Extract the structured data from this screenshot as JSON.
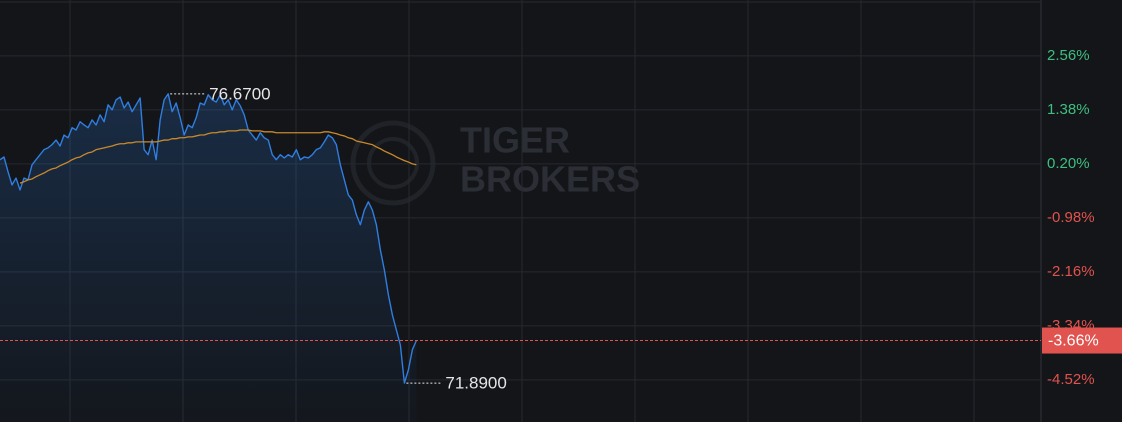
{
  "chart_data": {
    "type": "line",
    "series": [
      {
        "color": "#2f7ee0",
        "values": [
          0.29,
          0.35,
          0.03,
          -0.26,
          -0.11,
          -0.37,
          -0.11,
          -0.15,
          0.18,
          0.29,
          0.4,
          0.51,
          0.55,
          0.62,
          0.72,
          0.59,
          0.83,
          0.77,
          0.99,
          0.94,
          1.12,
          1.05,
          0.99,
          1.16,
          1.05,
          1.27,
          1.12,
          1.49,
          1.38,
          1.6,
          1.66,
          1.42,
          1.55,
          1.34,
          1.49,
          1.64,
          0.51,
          0.4,
          0.72,
          0.29,
          1.16,
          1.6,
          1.73,
          1.34,
          1.53,
          1.21,
          0.83,
          1.05,
          0.99,
          1.21,
          1.53,
          1.49,
          1.71,
          1.6,
          1.55,
          1.71,
          1.49,
          1.6,
          1.38,
          1.6,
          1.47,
          1.27,
          0.94,
          0.83,
          0.72,
          0.88,
          0.77,
          0.72,
          0.4,
          0.29,
          0.4,
          0.33,
          0.4,
          0.35,
          0.51,
          0.29,
          0.35,
          0.33,
          0.4,
          0.51,
          0.55,
          0.68,
          0.83,
          0.77,
          0.62,
          0.18,
          -0.15,
          -0.48,
          -0.59,
          -0.91,
          -1.13,
          -0.81,
          -0.63,
          -0.81,
          -1.13,
          -1.68,
          -2.12,
          -2.66,
          -3.1,
          -3.43,
          -3.76,
          -4.59,
          -4.3,
          -3.86,
          -3.66
        ]
      },
      {
        "color": "#c8892b",
        "values": [
          null,
          null,
          null,
          null,
          null,
          -0.22,
          -0.19,
          -0.15,
          -0.13,
          -0.08,
          -0.04,
          0.0,
          0.05,
          0.09,
          0.11,
          0.16,
          0.2,
          0.24,
          0.29,
          0.33,
          0.35,
          0.4,
          0.44,
          0.46,
          0.51,
          0.53,
          0.55,
          0.57,
          0.59,
          0.62,
          0.64,
          0.64,
          0.66,
          0.66,
          0.68,
          0.68,
          0.68,
          0.68,
          0.68,
          0.68,
          0.7,
          0.72,
          0.72,
          0.75,
          0.75,
          0.77,
          0.77,
          0.79,
          0.79,
          0.81,
          0.83,
          0.83,
          0.86,
          0.88,
          0.88,
          0.9,
          0.9,
          0.92,
          0.92,
          0.92,
          0.94,
          0.94,
          0.94,
          0.92,
          0.92,
          0.92,
          0.9,
          0.9,
          0.9,
          0.88,
          0.88,
          0.88,
          0.88,
          0.88,
          0.88,
          0.88,
          0.88,
          0.88,
          0.88,
          0.88,
          0.88,
          0.9,
          0.9,
          0.88,
          0.86,
          0.83,
          0.81,
          0.77,
          0.75,
          0.7,
          0.68,
          0.66,
          0.64,
          0.62,
          0.57,
          0.53,
          0.48,
          0.44,
          0.4,
          0.35,
          0.31,
          0.27,
          0.24,
          0.2,
          0.18
        ]
      }
    ],
    "xlim": [
      0,
      260
    ],
    "ylim": [
      -5.44,
      3.78
    ],
    "yticks": [
      {
        "value": 2.56,
        "label": "2.56%"
      },
      {
        "value": 1.38,
        "label": "1.38%"
      },
      {
        "value": 0.2,
        "label": "0.20%"
      },
      {
        "value": -0.98,
        "label": "-0.98%"
      },
      {
        "value": -2.16,
        "label": "-2.16%"
      },
      {
        "value": -3.34,
        "label": "-3.34%"
      },
      {
        "value": -4.52,
        "label": "-4.52%"
      }
    ],
    "grid": true,
    "up_color": "#3fbf7f",
    "down_color": "#e0534e",
    "high_label": "76.6700",
    "low_label": "71.8900",
    "last_label": "-3.66%",
    "watermark": [
      "TIGER",
      "BROKERS"
    ]
  }
}
